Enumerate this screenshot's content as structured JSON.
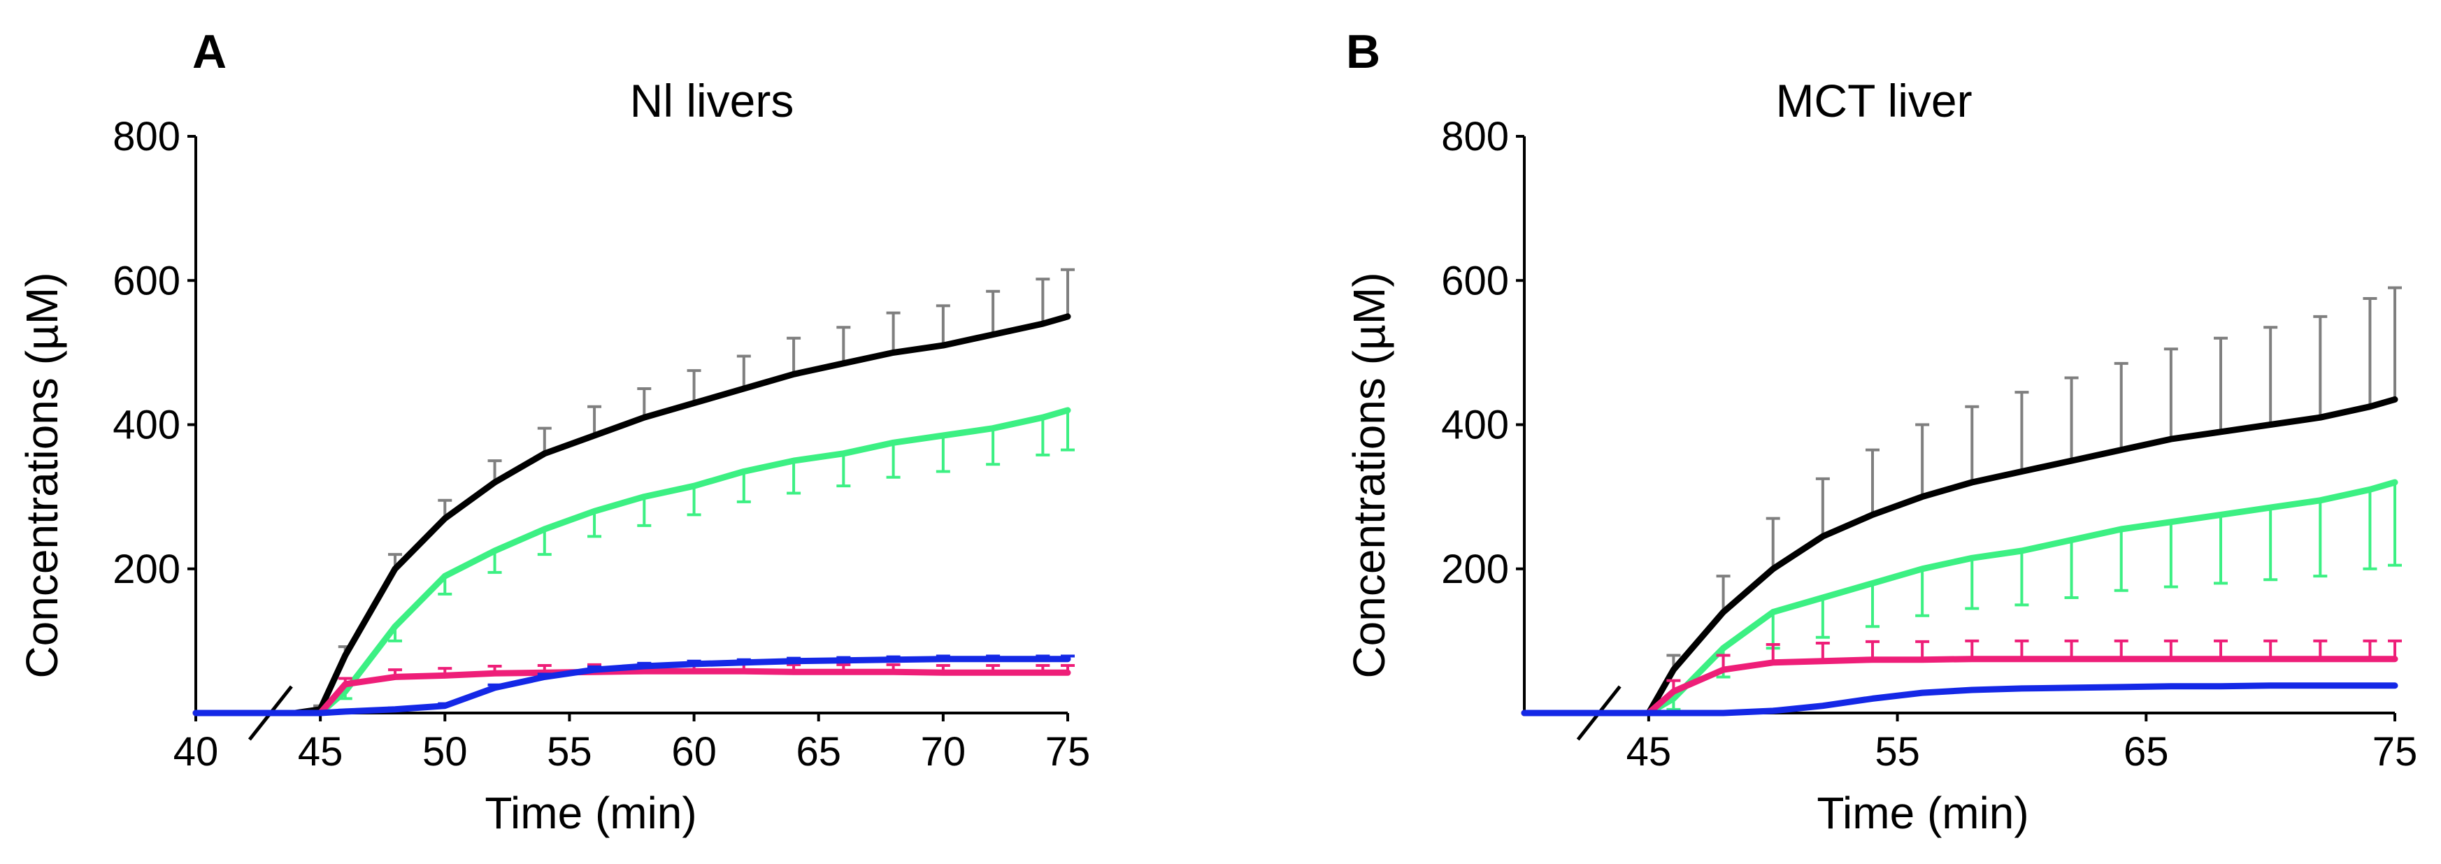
{
  "chart_data": [
    {
      "type": "line",
      "panel_label": "A",
      "title": "Nl livers",
      "xlabel": "Time (min)",
      "ylabel": "Concentrations (µM)",
      "xlim": [
        40,
        75
      ],
      "ylim": [
        0,
        800
      ],
      "x_ticks": [
        40,
        45,
        50,
        55,
        60,
        65,
        70,
        75
      ],
      "x_tick_labels": [
        "40",
        "45",
        "50",
        "55",
        "60",
        "65",
        "70",
        "75"
      ],
      "y_ticks": [
        200,
        400,
        600,
        800
      ],
      "y_tick_labels": [
        "200",
        "400",
        "600",
        "800"
      ],
      "axis_break": "between 40 and 45 min",
      "x": [
        40,
        42,
        44,
        45,
        46,
        48,
        50,
        52,
        54,
        56,
        58,
        60,
        62,
        64,
        66,
        68,
        70,
        72,
        74,
        75
      ],
      "series": [
        {
          "name": "black",
          "color": "#000000",
          "error_color": "#7f7f7f",
          "error_direction": "up",
          "values": [
            0,
            0,
            0,
            5,
            80,
            200,
            270,
            320,
            360,
            385,
            410,
            430,
            450,
            470,
            485,
            500,
            510,
            525,
            540,
            550
          ],
          "errors": [
            0,
            0,
            0,
            5,
            12,
            20,
            25,
            30,
            35,
            40,
            40,
            45,
            45,
            50,
            50,
            55,
            55,
            60,
            62,
            65
          ]
        },
        {
          "name": "green",
          "color": "#3cf083",
          "error_color": "#3cf083",
          "error_direction": "down",
          "values": [
            0,
            0,
            0,
            0,
            30,
            120,
            190,
            225,
            255,
            280,
            300,
            315,
            335,
            350,
            360,
            375,
            385,
            395,
            410,
            420
          ],
          "errors": [
            0,
            0,
            0,
            0,
            10,
            20,
            25,
            30,
            35,
            35,
            40,
            40,
            42,
            45,
            45,
            48,
            50,
            50,
            52,
            55
          ]
        },
        {
          "name": "magenta",
          "color": "#ee1e78",
          "error_color": "#ee1e78",
          "error_direction": "up",
          "values": [
            0,
            0,
            0,
            0,
            40,
            50,
            52,
            55,
            56,
            57,
            58,
            58,
            58,
            57,
            57,
            57,
            56,
            56,
            56,
            56
          ],
          "errors": [
            0,
            0,
            0,
            0,
            8,
            10,
            10,
            10,
            10,
            10,
            10,
            10,
            10,
            10,
            10,
            10,
            10,
            10,
            10,
            10
          ]
        },
        {
          "name": "blue",
          "color": "#1428e6",
          "error_color": "#1428e6",
          "error_direction": "up",
          "values": [
            0,
            0,
            0,
            0,
            2,
            5,
            10,
            35,
            50,
            60,
            65,
            68,
            70,
            72,
            73,
            74,
            75,
            75,
            75,
            75
          ],
          "errors": [
            0,
            0,
            0,
            0,
            2,
            2,
            3,
            4,
            4,
            4,
            4,
            4,
            4,
            4,
            4,
            4,
            4,
            4,
            4,
            4
          ]
        }
      ]
    },
    {
      "type": "line",
      "panel_label": "B",
      "title": "MCT liver",
      "xlabel": "Time (min)",
      "ylabel": "Concentrations (µM)",
      "xlim": [
        40,
        75
      ],
      "ylim": [
        0,
        800
      ],
      "x_ticks": [
        45,
        55,
        65,
        75
      ],
      "x_tick_labels": [
        "45",
        "55",
        "65",
        "75"
      ],
      "y_ticks": [
        200,
        400,
        600,
        800
      ],
      "y_tick_labels": [
        "200",
        "400",
        "600",
        "800"
      ],
      "axis_break": "between 40 and 45 min",
      "x": [
        40,
        42,
        44,
        45,
        46,
        48,
        50,
        52,
        54,
        56,
        58,
        60,
        62,
        64,
        66,
        68,
        70,
        72,
        74,
        75
      ],
      "series": [
        {
          "name": "black",
          "color": "#000000",
          "error_color": "#7f7f7f",
          "error_direction": "up",
          "values": [
            0,
            0,
            0,
            0,
            60,
            140,
            200,
            245,
            275,
            300,
            320,
            335,
            350,
            365,
            380,
            390,
            400,
            410,
            425,
            435
          ],
          "errors": [
            0,
            0,
            0,
            0,
            20,
            50,
            70,
            80,
            90,
            100,
            105,
            110,
            115,
            120,
            125,
            130,
            135,
            140,
            150,
            155
          ]
        },
        {
          "name": "green",
          "color": "#3cf083",
          "error_color": "#3cf083",
          "error_direction": "down",
          "values": [
            0,
            0,
            0,
            0,
            20,
            90,
            140,
            160,
            180,
            200,
            215,
            225,
            240,
            255,
            265,
            275,
            285,
            295,
            310,
            320
          ],
          "errors": [
            0,
            0,
            0,
            0,
            15,
            40,
            50,
            55,
            60,
            65,
            70,
            75,
            80,
            85,
            90,
            95,
            100,
            105,
            110,
            115
          ]
        },
        {
          "name": "magenta",
          "color": "#ee1e78",
          "error_color": "#ee1e78",
          "error_direction": "up",
          "values": [
            0,
            0,
            0,
            0,
            30,
            60,
            70,
            72,
            74,
            74,
            75,
            75,
            75,
            75,
            75,
            75,
            75,
            75,
            75,
            75
          ],
          "errors": [
            0,
            0,
            0,
            0,
            15,
            20,
            25,
            25,
            25,
            25,
            25,
            25,
            25,
            25,
            25,
            25,
            25,
            25,
            25,
            25
          ]
        },
        {
          "name": "blue",
          "color": "#1428e6",
          "error_color": "#1428e6",
          "error_direction": "up",
          "values": [
            0,
            0,
            0,
            0,
            0,
            0,
            3,
            10,
            20,
            28,
            32,
            34,
            35,
            36,
            37,
            37,
            38,
            38,
            38,
            38
          ],
          "errors": [
            0,
            0,
            0,
            0,
            0,
            0,
            0,
            0,
            0,
            0,
            0,
            0,
            0,
            0,
            0,
            0,
            0,
            0,
            0,
            0
          ]
        }
      ]
    }
  ]
}
